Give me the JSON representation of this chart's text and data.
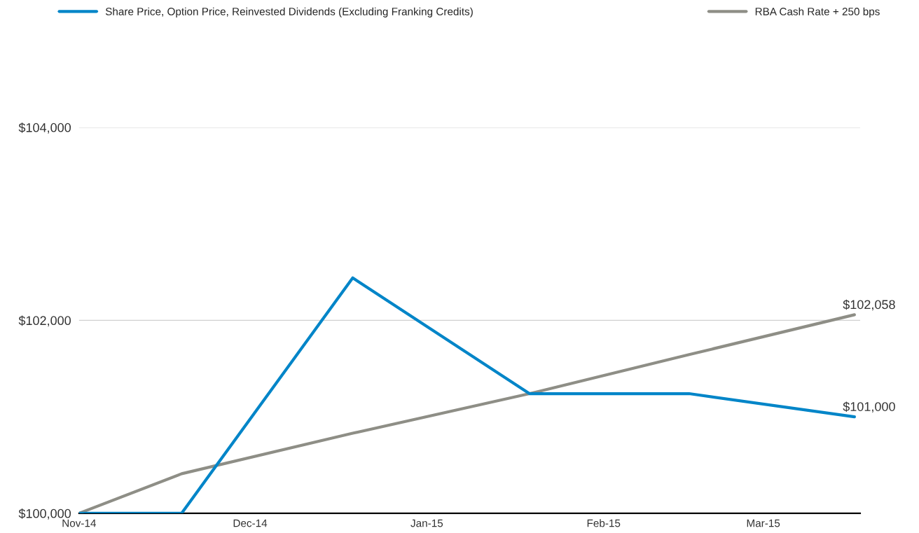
{
  "chart_data": {
    "type": "line",
    "series": [
      {
        "name": "Share Price, Option Price, Reinvested Dividends (Excluding Franking Credits)",
        "color": "#0085c8",
        "x": [
          "2014-11-01",
          "2014-11-19",
          "2014-12-19",
          "2015-01-19",
          "2015-02-16",
          "2015-03-17"
        ],
        "values": [
          100000,
          100000,
          102440,
          101240,
          101240,
          101000
        ]
      },
      {
        "name": "RBA Cash Rate + 250 bps",
        "color": "#8e8e86",
        "x": [
          "2014-11-01",
          "2014-11-19",
          "2014-12-19",
          "2015-01-19",
          "2015-02-16",
          "2015-03-17"
        ],
        "values": [
          100000,
          100410,
          100830,
          101240,
          101645,
          102058
        ]
      }
    ],
    "xlim": [
      "2014-11-01",
      "2015-03-18"
    ],
    "xticks": [
      {
        "value": "2014-11-01",
        "label": "Nov-14"
      },
      {
        "value": "2014-12-01",
        "label": "Dec-14"
      },
      {
        "value": "2015-01-01",
        "label": "Jan-15"
      },
      {
        "value": "2015-02-01",
        "label": "Feb-15"
      },
      {
        "value": "2015-03-01",
        "label": "Mar-15"
      }
    ],
    "ylim": [
      100000,
      104000
    ],
    "yticks": [
      {
        "value": 100000,
        "label": "$100,000"
      },
      {
        "value": 102000,
        "label": "$102,000"
      },
      {
        "value": 104000,
        "label": "$104,000"
      }
    ],
    "annotations": [
      {
        "text": "$102,058",
        "x": "2015-03-17",
        "y": 102058
      },
      {
        "text": "$101,000",
        "x": "2015-03-17",
        "y": 101000
      }
    ],
    "grid": "y",
    "legend": "top",
    "marker": "none",
    "line_style": "solid"
  }
}
